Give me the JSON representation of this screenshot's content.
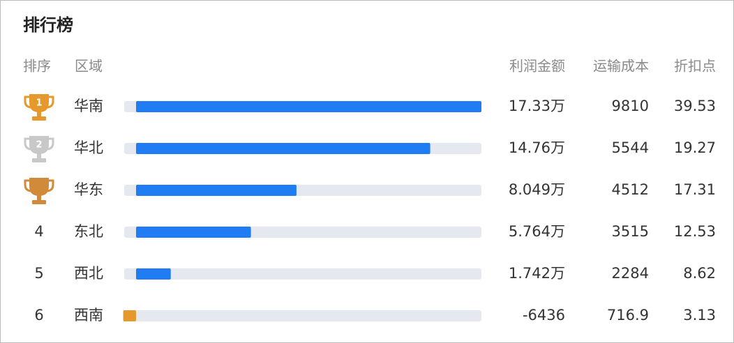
{
  "title": "排行榜",
  "columns": {
    "rank": "排序",
    "region": "区域",
    "profit": "利润金额",
    "cost": "运输成本",
    "discount": "折扣点"
  },
  "colors": {
    "positive": "#1f7cf2",
    "negative": "#e5982c",
    "track": "#e6e8ef"
  },
  "rows": [
    {
      "rank": 1,
      "region": "华南",
      "profit": 173300,
      "profit_label": "17.33万",
      "cost": 9810,
      "discount": 39.53
    },
    {
      "rank": 2,
      "region": "华北",
      "profit": 147600,
      "profit_label": "14.76万",
      "cost": 5544,
      "discount": 19.27
    },
    {
      "rank": null,
      "region": "华东",
      "profit": 80490,
      "profit_label": "8.049万",
      "cost": 4512,
      "discount": 17.31
    },
    {
      "rank": 4,
      "region": "东北",
      "profit": 57640,
      "profit_label": "5.764万",
      "cost": 3515,
      "discount": 12.53
    },
    {
      "rank": 5,
      "region": "西北",
      "profit": 17420,
      "profit_label": "1.742万",
      "cost": 2284,
      "discount": 8.62
    },
    {
      "rank": 6,
      "region": "西南",
      "profit": -6436,
      "cost": 716.9,
      "discount": 3.13
    }
  ]
}
